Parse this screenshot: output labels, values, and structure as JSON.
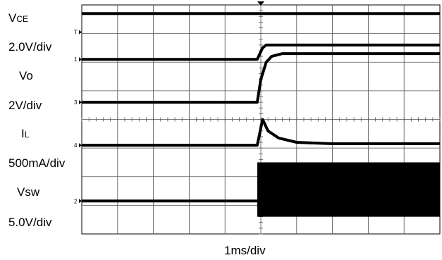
{
  "labels": {
    "vce_main": "V",
    "vce_sub": "CE",
    "vce_scale": "2.0V/div",
    "vo": "Vo",
    "vo_scale": "2V/div",
    "il_main": "I",
    "il_sub": "L",
    "il_scale": "500mA/div",
    "vsw": "Vsw",
    "vsw_scale": "5.0V/div",
    "time_scale": "1ms/div"
  },
  "chart_data": {
    "type": "line",
    "title": "",
    "xlabel": "1ms/div",
    "x_divisions": 10,
    "y_divisions": 8,
    "xlim_div": [
      0,
      10
    ],
    "ylim_div": [
      0,
      8
    ],
    "grid": true,
    "trigger_marker_div": 5,
    "series": [
      {
        "name": "",
        "channel_marker": "",
        "color": "#000000",
        "points": [
          [
            0,
            7.7
          ],
          [
            4.9,
            7.7
          ],
          [
            4.9,
            7.7
          ],
          [
            10,
            7.7
          ]
        ]
      },
      {
        "name": "",
        "channel_marker": "1",
        "color": "#000000",
        "points": [
          [
            0,
            6.1
          ],
          [
            4.9,
            6.1
          ],
          [
            5.05,
            6.5
          ],
          [
            5.15,
            6.6
          ],
          [
            10,
            6.6
          ]
        ]
      },
      {
        "name": "",
        "channel_marker": "3",
        "color": "#000000",
        "points": [
          [
            0,
            4.6
          ],
          [
            4.9,
            4.6
          ],
          [
            5.0,
            5.4
          ],
          [
            5.15,
            6.0
          ],
          [
            5.3,
            6.2
          ],
          [
            5.6,
            6.3
          ],
          [
            10,
            6.3
          ]
        ]
      },
      {
        "name": "",
        "channel_marker": "4",
        "color": "#000000",
        "points": [
          [
            0,
            3.1
          ],
          [
            4.9,
            3.1
          ],
          [
            5.05,
            4.0
          ],
          [
            5.2,
            3.6
          ],
          [
            5.5,
            3.35
          ],
          [
            6.0,
            3.2
          ],
          [
            7.0,
            3.15
          ],
          [
            10,
            3.15
          ]
        ]
      },
      {
        "name": "",
        "channel_marker": "2",
        "color": "#000000",
        "points": [
          [
            0,
            1.15
          ],
          [
            4.9,
            1.15
          ],
          [
            4.9,
            1.15
          ],
          [
            10,
            1.15
          ]
        ]
      }
    ],
    "switching_band": {
      "x_start_div": 4.9,
      "x_end_div": 10,
      "y_low_div": 0.6,
      "y_high_div": 2.5
    },
    "channel_markers": [
      "T",
      "1",
      "3",
      "4",
      "2"
    ]
  }
}
